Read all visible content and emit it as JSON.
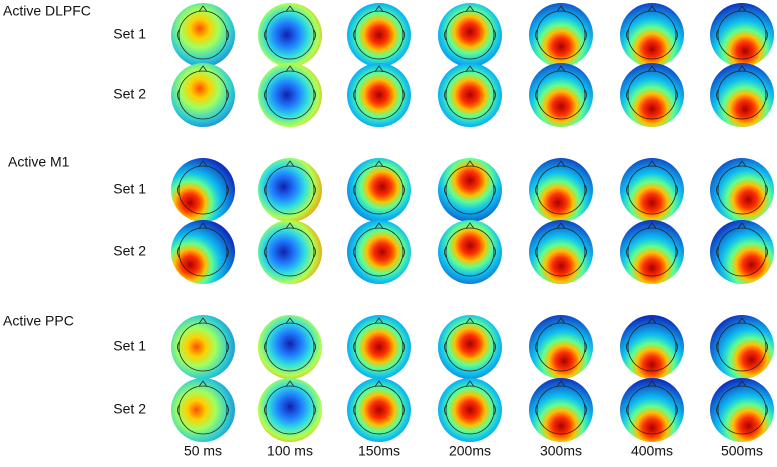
{
  "groups": [
    {
      "title": "Active DLPFC",
      "sets": [
        "Set 1",
        "Set 2"
      ]
    },
    {
      "title": "Active M1",
      "sets": [
        "Set 1",
        "Set 2"
      ]
    },
    {
      "title": "Active PPC",
      "sets": [
        "Set 1",
        "Set 2"
      ]
    }
  ],
  "times": [
    "50 ms",
    "100 ms",
    "150ms",
    "200ms",
    "300ms",
    "400ms",
    "500ms"
  ]
}
